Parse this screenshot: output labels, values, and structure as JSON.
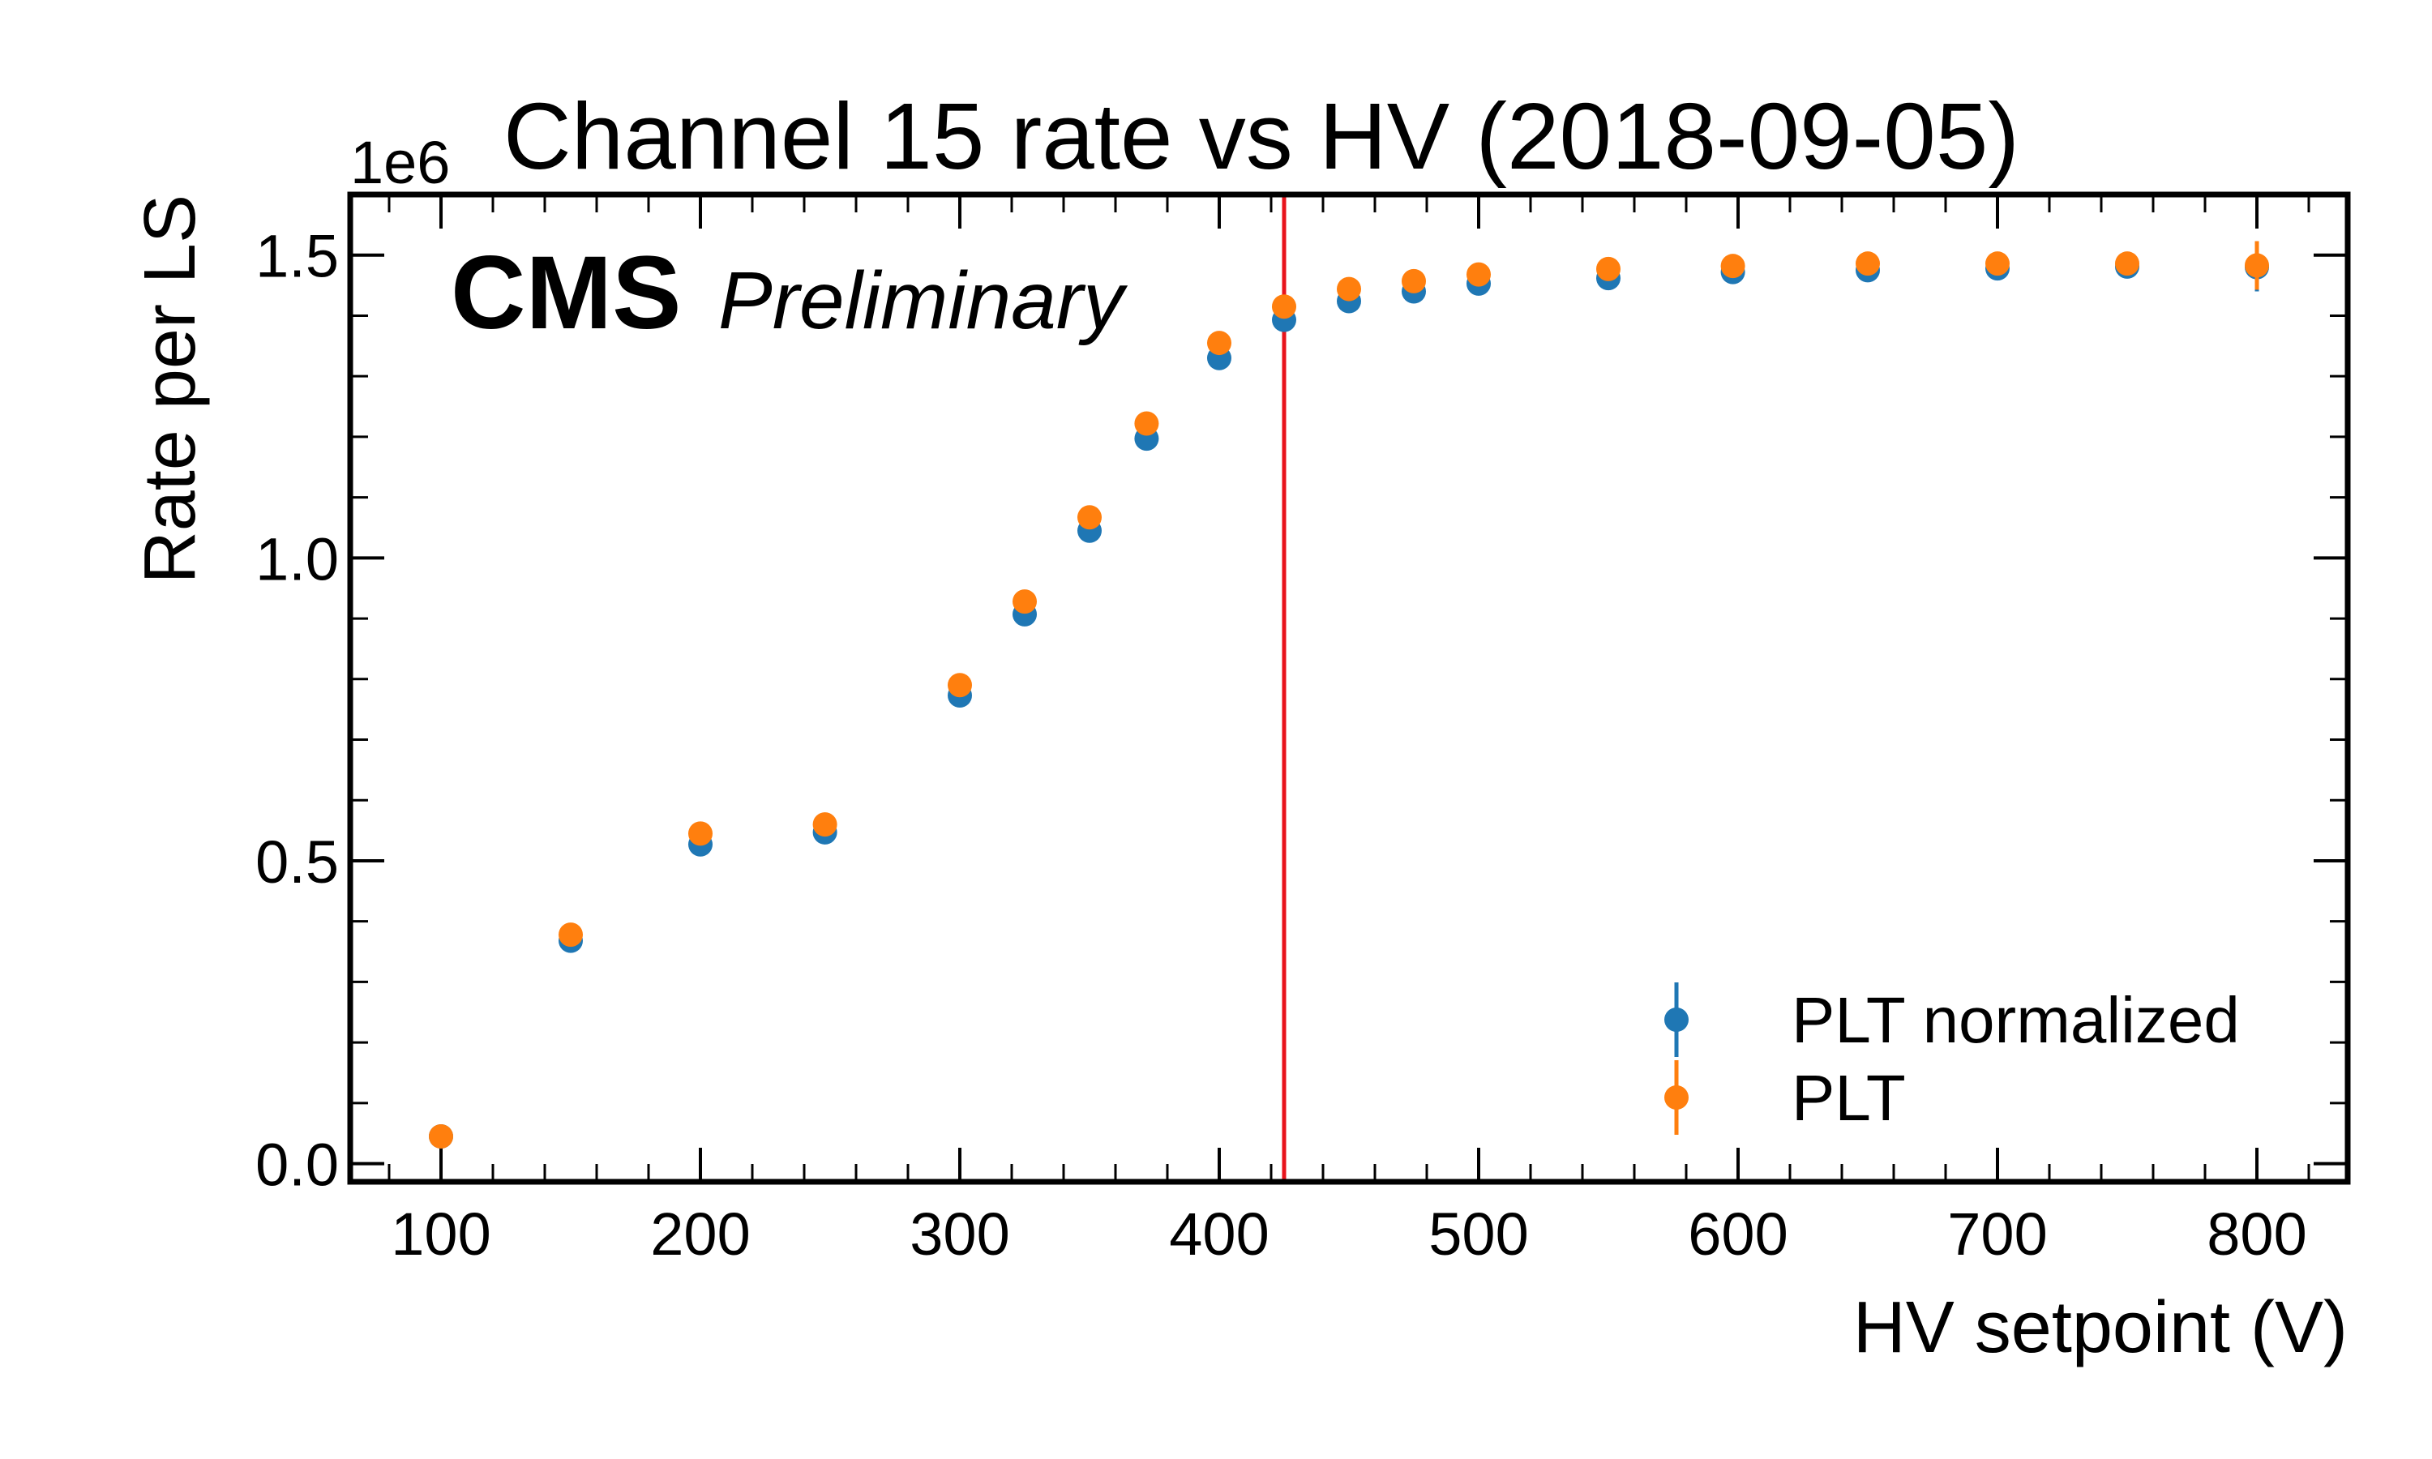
{
  "chart_data": {
    "type": "scatter",
    "title": "Channel 15 rate vs HV (2018-09-05)",
    "xlabel": "HV setpoint (V)",
    "ylabel": "Rate per LS",
    "y_multiplier": "1e6",
    "xlim": [
      65,
      835
    ],
    "ylim": [
      -0.03,
      1.6
    ],
    "x_ticks": [
      "100",
      "200",
      "300",
      "400",
      "500",
      "600",
      "700",
      "800"
    ],
    "y_ticks": [
      "0.0",
      "0.5",
      "1.0",
      "1.5"
    ],
    "reference_line_x": 425,
    "reference_line_color": "#e8141c",
    "annotation_bold": "CMS",
    "annotation_italic": "Preliminary",
    "legend_position": "lower-right",
    "series": [
      {
        "name": "PLT normalized",
        "color": "#1f77b4",
        "x": [
          100,
          150,
          200,
          248,
          300,
          325,
          350,
          372,
          400,
          425,
          450,
          475,
          500,
          550,
          598,
          650,
          700,
          750,
          800
        ],
        "y": [
          0.045,
          0.368,
          0.527,
          0.547,
          0.773,
          0.907,
          1.045,
          1.197,
          1.33,
          1.393,
          1.424,
          1.44,
          1.453,
          1.462,
          1.472,
          1.475,
          1.478,
          1.481,
          1.48
        ],
        "yerr": [
          0.004,
          0.006,
          0.006,
          0.006,
          0.007,
          0.007,
          0.007,
          0.008,
          0.008,
          0.008,
          0.008,
          0.008,
          0.008,
          0.01,
          0.011,
          0.012,
          0.013,
          0.015,
          0.04
        ]
      },
      {
        "name": "PLT",
        "color": "#ff7f0e",
        "x": [
          100,
          150,
          200,
          248,
          300,
          325,
          350,
          372,
          400,
          425,
          450,
          475,
          500,
          550,
          598,
          650,
          700,
          750,
          800
        ],
        "y": [
          0.045,
          0.378,
          0.545,
          0.56,
          0.79,
          0.928,
          1.067,
          1.222,
          1.355,
          1.415,
          1.444,
          1.457,
          1.468,
          1.477,
          1.482,
          1.486,
          1.486,
          1.486,
          1.483
        ],
        "yerr": [
          0.004,
          0.006,
          0.006,
          0.006,
          0.007,
          0.007,
          0.007,
          0.008,
          0.008,
          0.008,
          0.008,
          0.008,
          0.008,
          0.01,
          0.011,
          0.012,
          0.013,
          0.015,
          0.04
        ]
      }
    ]
  }
}
